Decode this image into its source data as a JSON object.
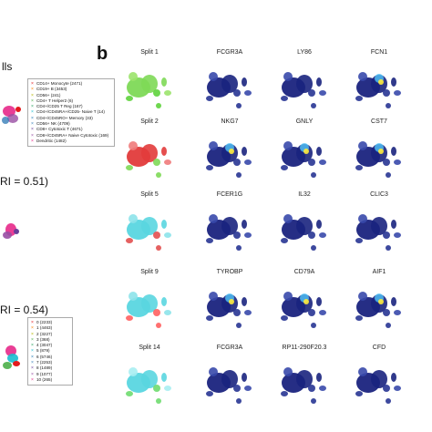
{
  "figure": {
    "panel_b_label": "b",
    "left_fragments": {
      "top": "lls",
      "middle": "RI = 0.51)",
      "bottom": "RI = 0.54)"
    },
    "legend_top": [
      {
        "label": "CD14+ Monocyte (2471)",
        "color": "#e41a1c"
      },
      {
        "label": "CD19+ B (3453)",
        "color": "#ff7f00"
      },
      {
        "label": "CD56+ (241)",
        "color": "#b5b500"
      },
      {
        "label": "CD4+ T Helper2 (6)",
        "color": "#4daf4a"
      },
      {
        "label": "CD4+/CD25 T Reg (167)",
        "color": "#2ca25f"
      },
      {
        "label": "CD4+/CD45RA+/CD25- Naive T (14)",
        "color": "#17becf"
      },
      {
        "label": "CD4+/CD45RO+ Memory (33)",
        "color": "#1f78b4"
      },
      {
        "label": "CD56+ NK (4709)",
        "color": "#377eb8"
      },
      {
        "label": "CD8+ Cytotoxic T (4671)",
        "color": "#6a3d9a"
      },
      {
        "label": "CD8+/CD45RA+ Naive Cytotoxic (169)",
        "color": "#984ea3"
      },
      {
        "label": "Dendritic (1482)",
        "color": "#e7298a"
      }
    ],
    "legend_bottom": [
      {
        "label": "0 (2233)",
        "color": "#e41a1c"
      },
      {
        "label": "1 (4463)",
        "color": "#ff7f00"
      },
      {
        "label": "2 (3227)",
        "color": "#b5b500"
      },
      {
        "label": "3 (368)",
        "color": "#4daf4a"
      },
      {
        "label": "4 (3047)",
        "color": "#2ca25f"
      },
      {
        "label": "5 (879)",
        "color": "#17becf"
      },
      {
        "label": "6 (5746)",
        "color": "#1f78b4"
      },
      {
        "label": "7 (2253)",
        "color": "#377eb8"
      },
      {
        "label": "8 (1489)",
        "color": "#6a3d9a"
      },
      {
        "label": "9 (1077)",
        "color": "#984ea3"
      },
      {
        "label": "10 (265)",
        "color": "#e7298a"
      }
    ],
    "grid_rows": [
      {
        "titles": [
          "Split 1",
          "FCGR3A",
          "LY86",
          "FCN1"
        ]
      },
      {
        "titles": [
          "Split 2",
          "NKG7",
          "GNLY",
          "CST7"
        ]
      },
      {
        "titles": [
          "Split 5",
          "FCER1G",
          "IL32",
          "CLIC3"
        ]
      },
      {
        "titles": [
          "Split 9",
          "TYROBP",
          "CD79A",
          "AIF1"
        ]
      },
      {
        "titles": [
          "Split 14",
          "FCGR3A",
          "RP11-290F20.3",
          "CFD"
        ]
      }
    ],
    "colors": {
      "split_1": [
        "#7ed957",
        "#5fd33d",
        "#9be36b"
      ],
      "split_2": [
        "#e23b3b",
        "#7ed957",
        "#f07b7b"
      ],
      "split_5": [
        "#5ad6e0",
        "#e25050",
        "#8de3ea"
      ],
      "split_9": [
        "#5ad6e0",
        "#ff6060",
        "#8de3ea"
      ],
      "split_14": [
        "#5ad6e0",
        "#6fdc6f",
        "#a8eef2"
      ],
      "feature_base": "#1a237e",
      "feature_hot": [
        "#4fc3f7",
        "#ffeb3b",
        "#ff7043"
      ]
    }
  }
}
